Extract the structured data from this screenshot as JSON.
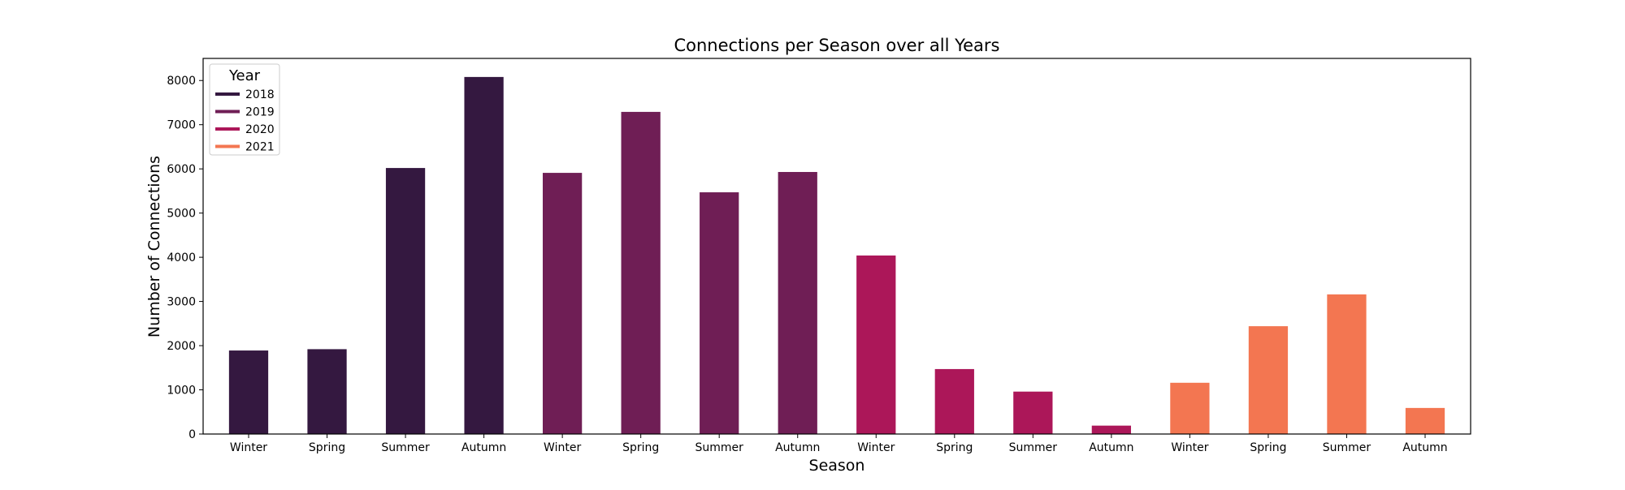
{
  "chart_data": {
    "type": "bar",
    "title": "Connections per Season over all Years",
    "xlabel": "Season",
    "ylabel": "Number of Connections",
    "ylim": [
      0,
      8500
    ],
    "yticks": [
      0,
      1000,
      2000,
      3000,
      4000,
      5000,
      6000,
      7000,
      8000
    ],
    "grid": false,
    "legend": {
      "title": "Year",
      "placement": "top-left",
      "entries": [
        {
          "label": "2018",
          "color": "#341840"
        },
        {
          "label": "2019",
          "color": "#6f1e55"
        },
        {
          "label": "2020",
          "color": "#ac1759"
        },
        {
          "label": "2021",
          "color": "#f37651"
        }
      ]
    },
    "bars": [
      {
        "category": "Winter",
        "year": "2018",
        "value": 1890
      },
      {
        "category": "Spring",
        "year": "2018",
        "value": 1920
      },
      {
        "category": "Summer",
        "year": "2018",
        "value": 6020
      },
      {
        "category": "Autumn",
        "year": "2018",
        "value": 8080
      },
      {
        "category": "Winter",
        "year": "2019",
        "value": 5910
      },
      {
        "category": "Spring",
        "year": "2019",
        "value": 7290
      },
      {
        "category": "Summer",
        "year": "2019",
        "value": 5470
      },
      {
        "category": "Autumn",
        "year": "2019",
        "value": 5930
      },
      {
        "category": "Winter",
        "year": "2020",
        "value": 4040
      },
      {
        "category": "Spring",
        "year": "2020",
        "value": 1470
      },
      {
        "category": "Summer",
        "year": "2020",
        "value": 960
      },
      {
        "category": "Autumn",
        "year": "2020",
        "value": 190
      },
      {
        "category": "Winter",
        "year": "2021",
        "value": 1160
      },
      {
        "category": "Spring",
        "year": "2021",
        "value": 2440
      },
      {
        "category": "Summer",
        "year": "2021",
        "value": 3160
      },
      {
        "category": "Autumn",
        "year": "2021",
        "value": 590
      }
    ]
  }
}
